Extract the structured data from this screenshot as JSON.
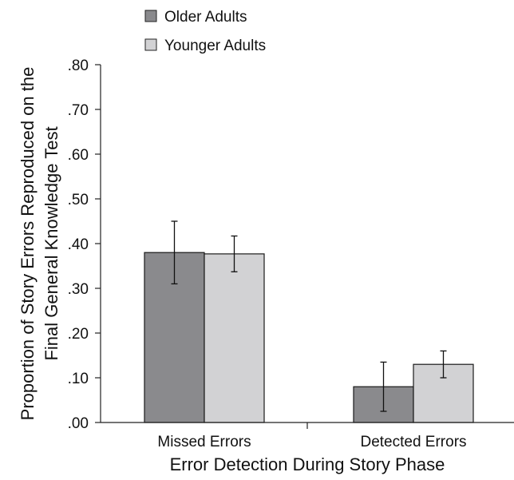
{
  "chart_data": {
    "type": "bar",
    "categories": [
      "Missed Errors",
      "Detected Errors"
    ],
    "series": [
      {
        "name": "Older Adults",
        "values": [
          0.38,
          0.08
        ],
        "error": [
          0.07,
          0.055
        ],
        "color": "#8a8a8d"
      },
      {
        "name": "Younger Adults",
        "values": [
          0.377,
          0.13
        ],
        "error": [
          0.04,
          0.03
        ],
        "color": "#d2d2d4"
      }
    ],
    "xlabel": "Error Detection During Story Phase",
    "ylabel_lines": [
      "Proportion of Story Errors Reproduced on the",
      "Final General Knowledge Test"
    ],
    "ylim": [
      0,
      0.8
    ],
    "yticks": [
      0,
      0.1,
      0.2,
      0.3,
      0.4,
      0.5,
      0.6,
      0.7,
      0.8
    ],
    "ytick_labels": [
      ".00",
      ".10",
      ".20",
      ".30",
      ".40",
      ".50",
      ".60",
      ".70",
      ".80"
    ],
    "legend_position": "top-left",
    "grid": false
  }
}
